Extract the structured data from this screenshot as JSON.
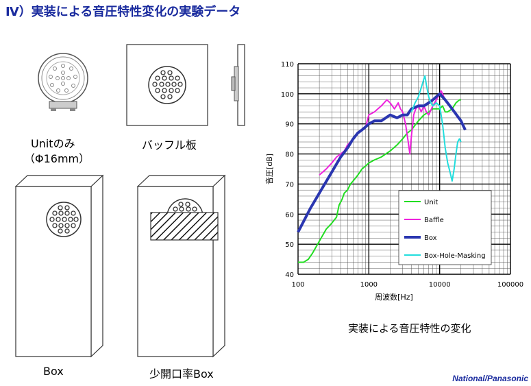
{
  "title": "Ⅳ）実装による音圧特性変化の実験データ",
  "captions": {
    "unit_line1": "Unitのみ",
    "unit_line2": "（Φ16mm）",
    "baffle": "バッフル板",
    "box": "Box",
    "box_masked": "少開口率Box"
  },
  "brand": "National/Panasonic",
  "colors": {
    "title": "#1a2b9e",
    "unit": "#22dd22",
    "baffle": "#ee22dd",
    "box": "#2a36b0",
    "masking": "#22dddd"
  },
  "chart_data": {
    "type": "line",
    "title": "実装による音圧特性の変化",
    "xlabel": "周波数[Hz]",
    "ylabel": "音圧[dB]",
    "xscale": "log",
    "xlim": [
      100,
      100000
    ],
    "ylim": [
      40,
      110
    ],
    "x_ticks": [
      "100",
      "1000",
      "10000",
      "100000"
    ],
    "y_ticks": [
      "40",
      "50",
      "60",
      "70",
      "80",
      "90",
      "100",
      "110"
    ],
    "grid": true,
    "legend_position": "bottom-right",
    "series": [
      {
        "name": "Unit",
        "color": "#22dd22",
        "width": 2,
        "x": [
          100,
          120,
          140,
          160,
          200,
          250,
          300,
          350,
          380,
          420,
          450,
          500,
          550,
          600,
          700,
          800,
          900,
          1000,
          1200,
          1500,
          2000,
          2500,
          3000,
          3500,
          4000,
          5000,
          6000,
          7000,
          8000,
          9000,
          10000,
          11000,
          12000,
          13000,
          15000,
          17000,
          19000,
          20000
        ],
        "y": [
          44,
          44,
          45,
          47,
          51,
          55,
          57,
          59,
          63,
          65,
          67,
          68,
          70,
          71,
          73,
          75,
          76,
          77,
          78,
          79,
          81,
          83,
          85,
          87,
          88,
          91,
          93,
          94,
          95,
          95,
          95,
          96,
          94,
          94,
          95,
          97,
          98,
          98
        ]
      },
      {
        "name": "Baffle",
        "color": "#ee22dd",
        "width": 2,
        "x": [
          200,
          250,
          300,
          350,
          400,
          450,
          500,
          600,
          700,
          800,
          900,
          1000,
          1200,
          1500,
          1800,
          2000,
          2300,
          2600,
          2800,
          3000,
          3300,
          3600,
          3800,
          4000,
          4300,
          4600,
          5000,
          5500,
          6000,
          6500,
          7000,
          8000,
          9000,
          10000,
          10500,
          11000,
          12000,
          13000,
          15000,
          17000,
          18000
        ],
        "y": [
          73,
          75,
          77,
          79,
          80,
          81,
          83,
          85,
          87,
          88,
          89,
          93,
          94,
          96,
          98,
          97,
          95,
          97,
          95,
          94,
          90,
          84,
          80,
          86,
          93,
          95,
          96,
          94,
          96,
          94,
          93,
          96,
          98,
          100,
          101,
          100,
          98,
          97,
          95,
          93,
          92
        ]
      },
      {
        "name": "Box",
        "color": "#2a36b0",
        "width": 4,
        "x": [
          100,
          150,
          200,
          300,
          400,
          500,
          600,
          700,
          800,
          900,
          1000,
          1200,
          1500,
          2000,
          2500,
          3000,
          3500,
          4000,
          5000,
          6000,
          7000,
          8000,
          10000,
          12000,
          15000,
          20000,
          23000
        ],
        "y": [
          54,
          62,
          67,
          74,
          79,
          82,
          85,
          87,
          88,
          89,
          90,
          91,
          91,
          93,
          92,
          93,
          93,
          95,
          96,
          96,
          97,
          98,
          100,
          98,
          95,
          91,
          88
        ]
      },
      {
        "name": "Box-Hole-Masking",
        "color": "#22dddd",
        "width": 2,
        "x": [
          4000,
          4500,
          5000,
          5500,
          6000,
          6200,
          6500,
          7000,
          7500,
          8000,
          9000,
          10000,
          11000,
          12000,
          13000,
          14000,
          15000,
          16000,
          17000,
          18000,
          19000,
          20000
        ],
        "y": [
          94,
          97,
          99,
          102,
          105,
          106,
          103,
          99,
          97,
          96,
          97,
          96,
          90,
          82,
          77,
          74,
          71,
          75,
          80,
          84,
          85,
          84
        ]
      }
    ]
  }
}
